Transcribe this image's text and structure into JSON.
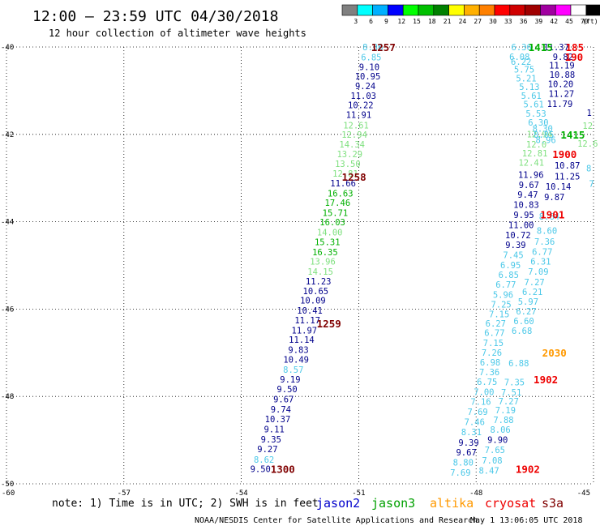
{
  "title": "12:00 — 23:59 UTC 04/30/2018",
  "subtitle": "12 hour collection of altimeter wave heights",
  "legend": {
    "unit": "(ft)",
    "items": [
      {
        "label": "3",
        "color": "#808080"
      },
      {
        "label": "6",
        "color": "#00ffff"
      },
      {
        "label": "9",
        "color": "#00b0ff"
      },
      {
        "label": "12",
        "color": "#0000ff"
      },
      {
        "label": "15",
        "color": "#00ff00"
      },
      {
        "label": "18",
        "color": "#00c000"
      },
      {
        "label": "21",
        "color": "#008000"
      },
      {
        "label": "24",
        "color": "#ffff00"
      },
      {
        "label": "27",
        "color": "#ffb000"
      },
      {
        "label": "30",
        "color": "#ff8000"
      },
      {
        "label": "33",
        "color": "#ff0000"
      },
      {
        "label": "36",
        "color": "#d00000"
      },
      {
        "label": "39",
        "color": "#a00000"
      },
      {
        "label": "42",
        "color": "#a000a0"
      },
      {
        "label": "45",
        "color": "#ff00ff"
      },
      {
        "label": "70",
        "color": "#ffffff"
      },
      {
        "label": "",
        "color": "#000000"
      }
    ]
  },
  "axes": {
    "lon_ticks": [
      "-60",
      "-57",
      "-54",
      "-51",
      "-48",
      "-45"
    ],
    "lat_ticks": [
      "-40",
      "-42",
      "-44",
      "-46",
      "-48",
      "-50"
    ]
  },
  "colors": {
    "c1": "#4bc8e8",
    "c2": "#00008b",
    "c3": "#7fe07f",
    "c4": "#00b000",
    "c5": "#800000",
    "c6": "#ee0000",
    "c7": "#ff9900"
  },
  "tracks": [
    {
      "name": "track-west",
      "points": [
        {
          "lon": -50.64,
          "lat": -40.0,
          "value": "8.36",
          "color": "c1"
        },
        {
          "lon": -50.68,
          "lat": -40.23,
          "value": "6.85",
          "color": "c1"
        },
        {
          "lon": -50.73,
          "lat": -40.45,
          "value": "9.10",
          "color": "c2"
        },
        {
          "lon": -50.77,
          "lat": -40.67,
          "value": "10.95",
          "color": "c2"
        },
        {
          "lon": -50.83,
          "lat": -40.89,
          "value": "9.24",
          "color": "c2"
        },
        {
          "lon": -50.88,
          "lat": -41.11,
          "value": "11.03",
          "color": "c2"
        },
        {
          "lon": -50.95,
          "lat": -41.33,
          "value": "10.22",
          "color": "c2"
        },
        {
          "lon": -51.0,
          "lat": -41.55,
          "value": "11.91",
          "color": "c2"
        },
        {
          "lon": -51.07,
          "lat": -41.79,
          "value": "12.61",
          "color": "c3"
        },
        {
          "lon": -51.11,
          "lat": -42.0,
          "value": "12.94",
          "color": "c3"
        },
        {
          "lon": -51.17,
          "lat": -42.23,
          "value": "14.34",
          "color": "c3"
        },
        {
          "lon": -51.23,
          "lat": -42.45,
          "value": "13.29",
          "color": "c3"
        },
        {
          "lon": -51.28,
          "lat": -42.67,
          "value": "13.50",
          "color": "c3"
        },
        {
          "lon": -51.34,
          "lat": -42.89,
          "value": "12.81",
          "color": "c3"
        },
        {
          "lon": -51.4,
          "lat": -43.12,
          "value": "11.66",
          "color": "c2"
        },
        {
          "lon": -51.47,
          "lat": -43.35,
          "value": "16.63",
          "color": "c4"
        },
        {
          "lon": -51.54,
          "lat": -43.56,
          "value": "17.46",
          "color": "c4"
        },
        {
          "lon": -51.6,
          "lat": -43.79,
          "value": "15.71",
          "color": "c4"
        },
        {
          "lon": -51.67,
          "lat": -44.01,
          "value": "16.03",
          "color": "c4"
        },
        {
          "lon": -51.74,
          "lat": -44.24,
          "value": "14.00",
          "color": "c3"
        },
        {
          "lon": -51.8,
          "lat": -44.46,
          "value": "15.31",
          "color": "c4"
        },
        {
          "lon": -51.86,
          "lat": -44.69,
          "value": "16.35",
          "color": "c4"
        },
        {
          "lon": -51.92,
          "lat": -44.91,
          "value": "13.96",
          "color": "c3"
        },
        {
          "lon": -51.98,
          "lat": -45.14,
          "value": "14.15",
          "color": "c3"
        },
        {
          "lon": -52.03,
          "lat": -45.36,
          "value": "11.23",
          "color": "c2"
        },
        {
          "lon": -52.1,
          "lat": -45.58,
          "value": "10.65",
          "color": "c2"
        },
        {
          "lon": -52.17,
          "lat": -45.8,
          "value": "10.09",
          "color": "c2"
        },
        {
          "lon": -52.25,
          "lat": -46.03,
          "value": "10.41",
          "color": "c2"
        },
        {
          "lon": -52.31,
          "lat": -46.25,
          "value": "11.17",
          "color": "c2"
        },
        {
          "lon": -52.39,
          "lat": -46.48,
          "value": "11.97",
          "color": "c2"
        },
        {
          "lon": -52.46,
          "lat": -46.7,
          "value": "11.14",
          "color": "c2"
        },
        {
          "lon": -52.54,
          "lat": -46.93,
          "value": "9.83",
          "color": "c2"
        },
        {
          "lon": -52.6,
          "lat": -47.15,
          "value": "10.49",
          "color": "c2"
        },
        {
          "lon": -52.67,
          "lat": -47.38,
          "value": "8.57",
          "color": "c1"
        },
        {
          "lon": -52.75,
          "lat": -47.61,
          "value": "9.19",
          "color": "c2"
        },
        {
          "lon": -52.83,
          "lat": -47.83,
          "value": "9.50",
          "color": "c2"
        },
        {
          "lon": -52.92,
          "lat": -48.06,
          "value": "9.67",
          "color": "c2"
        },
        {
          "lon": -52.99,
          "lat": -48.29,
          "value": "9.74",
          "color": "c2"
        },
        {
          "lon": -53.07,
          "lat": -48.52,
          "value": "10.37",
          "color": "c2"
        },
        {
          "lon": -53.16,
          "lat": -48.75,
          "value": "9.11",
          "color": "c2"
        },
        {
          "lon": -53.24,
          "lat": -48.98,
          "value": "9.35",
          "color": "c2"
        },
        {
          "lon": -53.33,
          "lat": -49.2,
          "value": "9.27",
          "color": "c2"
        },
        {
          "lon": -53.42,
          "lat": -49.44,
          "value": "8.62",
          "color": "c1"
        },
        {
          "lon": -53.51,
          "lat": -49.66,
          "value": "9.50",
          "color": "c2"
        }
      ]
    },
    {
      "name": "track-east-a",
      "points": [
        {
          "lon": -46.84,
          "lat": -40.0,
          "value": "6.36",
          "color": "c1"
        },
        {
          "lon": -46.89,
          "lat": -40.22,
          "value": "6.08",
          "color": "c1"
        },
        {
          "lon": -46.85,
          "lat": -40.33,
          "value": "6.22",
          "color": "c1"
        },
        {
          "lon": -46.77,
          "lat": -40.51,
          "value": "5.75",
          "color": "c1"
        },
        {
          "lon": -46.72,
          "lat": -40.71,
          "value": "5.21",
          "color": "c1"
        },
        {
          "lon": -46.64,
          "lat": -40.91,
          "value": "5.13",
          "color": "c1"
        },
        {
          "lon": -46.59,
          "lat": -41.11,
          "value": "5.61",
          "color": "c1"
        },
        {
          "lon": -46.53,
          "lat": -41.31,
          "value": "5.61",
          "color": "c1"
        },
        {
          "lon": -46.47,
          "lat": -41.52,
          "value": "5.53",
          "color": "c1"
        },
        {
          "lon": -46.41,
          "lat": -41.73,
          "value": "6.30",
          "color": "c1"
        },
        {
          "lon": -46.38,
          "lat": -41.99,
          "value": "12.94",
          "color": "c3"
        },
        {
          "lon": -46.46,
          "lat": -42.23,
          "value": "12.0",
          "color": "c3"
        },
        {
          "lon": -46.5,
          "lat": -42.43,
          "value": "12.81",
          "color": "c3"
        },
        {
          "lon": -46.59,
          "lat": -42.64,
          "value": "12.41",
          "color": "c3"
        },
        {
          "lon": -46.6,
          "lat": -42.92,
          "value": "11.96",
          "color": "c2"
        },
        {
          "lon": -46.65,
          "lat": -43.15,
          "value": "9.67",
          "color": "c2"
        },
        {
          "lon": -46.68,
          "lat": -43.38,
          "value": "9.47",
          "color": "c2"
        },
        {
          "lon": -46.72,
          "lat": -43.61,
          "value": "10.83",
          "color": "c2"
        },
        {
          "lon": -46.78,
          "lat": -43.84,
          "value": "9.95",
          "color": "c2"
        },
        {
          "lon": -46.85,
          "lat": -44.07,
          "value": "11.00",
          "color": "c2"
        },
        {
          "lon": -46.93,
          "lat": -44.3,
          "value": "10.72",
          "color": "c2"
        },
        {
          "lon": -46.99,
          "lat": -44.53,
          "value": "9.39",
          "color": "c2"
        },
        {
          "lon": -47.05,
          "lat": -44.76,
          "value": "7.45",
          "color": "c1"
        },
        {
          "lon": -47.12,
          "lat": -44.99,
          "value": "6.95",
          "color": "c1"
        },
        {
          "lon": -47.17,
          "lat": -45.21,
          "value": "6.85",
          "color": "c1"
        },
        {
          "lon": -47.24,
          "lat": -45.44,
          "value": "6.77",
          "color": "c1"
        },
        {
          "lon": -47.31,
          "lat": -45.67,
          "value": "5.96",
          "color": "c1"
        },
        {
          "lon": -47.36,
          "lat": -45.89,
          "value": "7.25",
          "color": "c1"
        },
        {
          "lon": -47.41,
          "lat": -46.11,
          "value": "7.15",
          "color": "c1"
        },
        {
          "lon": -47.5,
          "lat": -46.33,
          "value": "6.27",
          "color": "c1"
        },
        {
          "lon": -47.53,
          "lat": -46.54,
          "value": "6.77",
          "color": "c1"
        },
        {
          "lon": -47.56,
          "lat": -46.77,
          "value": "7.15",
          "color": "c1"
        },
        {
          "lon": -47.6,
          "lat": -46.99,
          "value": "7.26",
          "color": "c1"
        },
        {
          "lon": -47.64,
          "lat": -47.22,
          "value": "6.98",
          "color": "c1"
        },
        {
          "lon": -47.66,
          "lat": -47.44,
          "value": "7.36",
          "color": "c1"
        },
        {
          "lon": -47.72,
          "lat": -47.66,
          "value": "6.75",
          "color": "c1"
        },
        {
          "lon": -47.8,
          "lat": -47.89,
          "value": "7.00",
          "color": "c1"
        },
        {
          "lon": -47.88,
          "lat": -48.12,
          "value": "7.16",
          "color": "c1"
        },
        {
          "lon": -47.96,
          "lat": -48.35,
          "value": "7.69",
          "color": "c1"
        },
        {
          "lon": -48.04,
          "lat": -48.58,
          "value": "7.46",
          "color": "c1"
        },
        {
          "lon": -48.12,
          "lat": -48.81,
          "value": "8.31",
          "color": "c1"
        },
        {
          "lon": -48.19,
          "lat": -49.05,
          "value": "9.39",
          "color": "c2"
        },
        {
          "lon": -48.25,
          "lat": -49.28,
          "value": "9.67",
          "color": "c2"
        },
        {
          "lon": -48.33,
          "lat": -49.51,
          "value": "8.80",
          "color": "c1"
        },
        {
          "lon": -48.4,
          "lat": -49.74,
          "value": "7.69",
          "color": "c1"
        }
      ]
    },
    {
      "name": "track-east-b",
      "points": [
        {
          "lon": -45.95,
          "lat": -40.0,
          "value": "11.37",
          "color": "c2"
        },
        {
          "lon": -45.78,
          "lat": -40.22,
          "value": "9.82",
          "color": "c2"
        },
        {
          "lon": -45.81,
          "lat": -40.42,
          "value": "11.19",
          "color": "c2"
        },
        {
          "lon": -45.8,
          "lat": -40.63,
          "value": "10.88",
          "color": "c2"
        },
        {
          "lon": -45.84,
          "lat": -40.84,
          "value": "10.20",
          "color": "c2"
        },
        {
          "lon": -45.82,
          "lat": -41.07,
          "value": "11.27",
          "color": "c2"
        },
        {
          "lon": -45.86,
          "lat": -41.3,
          "value": "11.79",
          "color": "c2"
        },
        {
          "lon": -46.3,
          "lat": -41.86,
          "value": "8.30",
          "color": "c1"
        },
        {
          "lon": -46.27,
          "lat": -42.0,
          "value": "8.85",
          "color": "c1"
        },
        {
          "lon": -46.22,
          "lat": -42.12,
          "value": "8.96",
          "color": "c1"
        },
        {
          "lon": -45.67,
          "lat": -42.71,
          "value": "10.87",
          "color": "c2"
        },
        {
          "lon": -45.67,
          "lat": -42.96,
          "value": "11.25",
          "color": "c2"
        },
        {
          "lon": -45.9,
          "lat": -43.19,
          "value": "10.14",
          "color": "c2"
        },
        {
          "lon": -46.0,
          "lat": -43.43,
          "value": "9.87",
          "color": "c2"
        },
        {
          "lon": -46.13,
          "lat": -43.88,
          "value": "8.64",
          "color": "c1"
        },
        {
          "lon": -46.19,
          "lat": -44.2,
          "value": "8.60",
          "color": "c1"
        },
        {
          "lon": -46.25,
          "lat": -44.45,
          "value": "7.36",
          "color": "c1"
        },
        {
          "lon": -46.31,
          "lat": -44.68,
          "value": "6.77",
          "color": "c1"
        },
        {
          "lon": -46.35,
          "lat": -44.91,
          "value": "6.31",
          "color": "c1"
        },
        {
          "lon": -46.41,
          "lat": -45.14,
          "value": "7.09",
          "color": "c1"
        },
        {
          "lon": -46.51,
          "lat": -45.38,
          "value": "7.27",
          "color": "c1"
        },
        {
          "lon": -46.56,
          "lat": -45.6,
          "value": "6.21",
          "color": "c1"
        },
        {
          "lon": -46.67,
          "lat": -45.83,
          "value": "5.97",
          "color": "c1"
        },
        {
          "lon": -46.72,
          "lat": -46.05,
          "value": "6.27",
          "color": "c1"
        },
        {
          "lon": -46.78,
          "lat": -46.27,
          "value": "6.60",
          "color": "c1"
        },
        {
          "lon": -46.83,
          "lat": -46.49,
          "value": "6.68",
          "color": "c1"
        },
        {
          "lon": -46.91,
          "lat": -47.24,
          "value": "6.88",
          "color": "c1"
        },
        {
          "lon": -47.02,
          "lat": -47.67,
          "value": "7.35",
          "color": "c1"
        },
        {
          "lon": -47.1,
          "lat": -47.9,
          "value": "7.51",
          "color": "c1"
        },
        {
          "lon": -47.17,
          "lat": -48.11,
          "value": "7.27",
          "color": "c1"
        },
        {
          "lon": -47.25,
          "lat": -48.31,
          "value": "7.19",
          "color": "c1"
        },
        {
          "lon": -47.3,
          "lat": -48.53,
          "value": "7.88",
          "color": "c1"
        },
        {
          "lon": -47.38,
          "lat": -48.76,
          "value": "8.06",
          "color": "c1"
        },
        {
          "lon": -47.45,
          "lat": -48.99,
          "value": "9.90",
          "color": "c2"
        },
        {
          "lon": -47.52,
          "lat": -49.22,
          "value": "7.65",
          "color": "c1"
        },
        {
          "lon": -47.59,
          "lat": -49.46,
          "value": "7.08",
          "color": "c1"
        },
        {
          "lon": -47.67,
          "lat": -49.69,
          "value": "8.47",
          "color": "c1"
        }
      ]
    },
    {
      "name": "track-east-c",
      "points": [
        {
          "lon": -45.11,
          "lat": -41.5,
          "value": "1",
          "color": "c2"
        },
        {
          "lon": -45.15,
          "lat": -41.8,
          "value": "12",
          "color": "c3"
        },
        {
          "lon": -45.15,
          "lat": -42.21,
          "value": "12.6",
          "color": "c3"
        },
        {
          "lon": -45.12,
          "lat": -42.77,
          "value": "8",
          "color": "c1"
        },
        {
          "lon": -45.05,
          "lat": -43.13,
          "value": "7",
          "color": "c1"
        }
      ]
    }
  ],
  "time_labels": [
    {
      "text": "1257",
      "lon": -50.37,
      "lat": -40.0,
      "color": "c5"
    },
    {
      "text": "1258",
      "lon": -51.12,
      "lat": -42.97,
      "color": "c5"
    },
    {
      "text": "1259",
      "lon": -51.76,
      "lat": -46.33,
      "color": "c5"
    },
    {
      "text": "1300",
      "lon": -52.94,
      "lat": -49.66,
      "color": "c5"
    },
    {
      "text": "1415",
      "lon": -46.35,
      "lat": -40.0,
      "color": "c4"
    },
    {
      "text": "1415",
      "lon": -45.53,
      "lat": -42.0,
      "color": "c4"
    },
    {
      "text": "185",
      "lon": -45.48,
      "lat": -40.0,
      "color": "c6"
    },
    {
      "text": "190",
      "lon": -45.5,
      "lat": -40.22,
      "color": "c6"
    },
    {
      "text": "1900",
      "lon": -45.74,
      "lat": -42.45,
      "color": "c6"
    },
    {
      "text": "1901",
      "lon": -46.05,
      "lat": -43.83,
      "color": "c6"
    },
    {
      "text": "2030",
      "lon": -46.0,
      "lat": -46.99,
      "color": "c7"
    },
    {
      "text": "1902",
      "lon": -46.22,
      "lat": -47.61,
      "color": "c6"
    },
    {
      "text": "1902",
      "lon": -46.68,
      "lat": -49.66,
      "color": "c6"
    }
  ],
  "footer": {
    "note": "note: 1) Time is in UTC; 2) SWH is in feet",
    "missions": [
      {
        "label": "jason2",
        "color": "#0000cc"
      },
      {
        "label": "jason3",
        "color": "#00a000"
      },
      {
        "label": "altika",
        "color": "#ff9900"
      },
      {
        "label": "cryosat",
        "color": "#ee0000"
      },
      {
        "label": "s3a",
        "color": "#800000"
      }
    ],
    "credit": "NOAA/NESDIS Center for Satellite Applications and Research",
    "timestamp": "May  1 13:06:05 UTC 2018"
  }
}
